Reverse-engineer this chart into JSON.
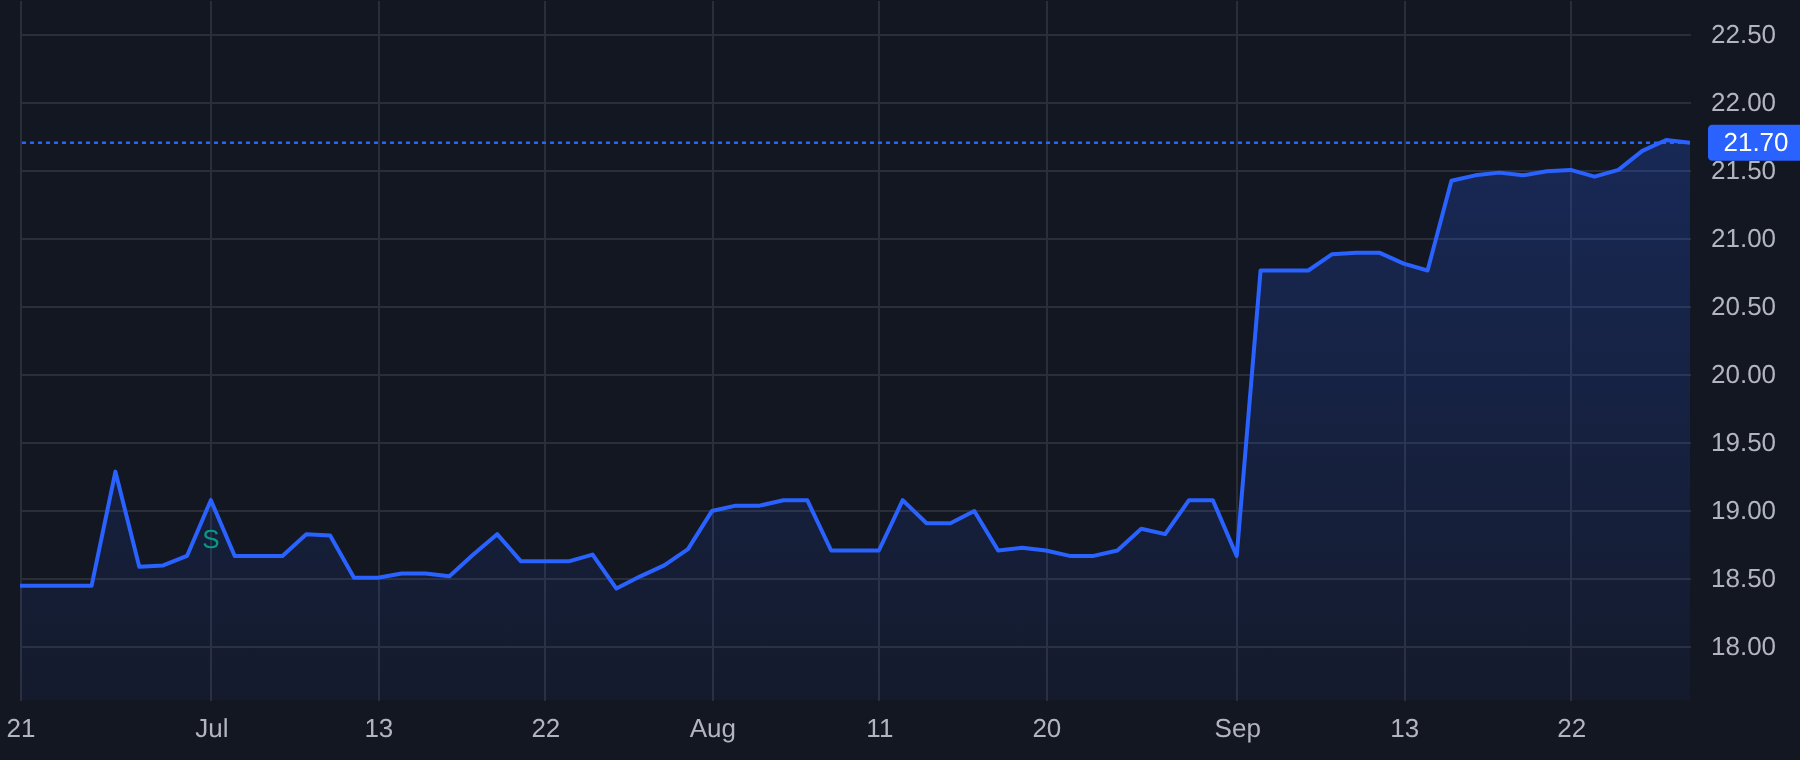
{
  "chart_data": {
    "type": "area",
    "categories": [
      "21",
      null,
      null,
      null,
      null,
      null,
      null,
      null,
      "Jul",
      null,
      null,
      null,
      null,
      null,
      null,
      "13",
      null,
      null,
      null,
      null,
      null,
      null,
      "22",
      null,
      null,
      null,
      null,
      null,
      null,
      "Aug",
      null,
      null,
      null,
      null,
      null,
      null,
      "11",
      null,
      null,
      null,
      null,
      null,
      null,
      "20",
      null,
      null,
      null,
      null,
      null,
      null,
      null,
      "Sep",
      null,
      null,
      null,
      null,
      null,
      null,
      "13",
      null,
      null,
      null,
      null,
      null,
      null,
      "22",
      null,
      null,
      null,
      null,
      null
    ],
    "series": [
      {
        "color": "#2962ff",
        "values": [
          18.44,
          18.44,
          18.44,
          18.44,
          19.28,
          18.58,
          18.59,
          18.66,
          19.07,
          18.66,
          18.66,
          18.66,
          18.82,
          18.81,
          18.5,
          18.5,
          18.53,
          18.53,
          18.51,
          18.67,
          18.82,
          18.62,
          18.62,
          18.62,
          18.67,
          18.42,
          18.51,
          18.59,
          18.71,
          18.99,
          19.03,
          19.03,
          19.07,
          19.07,
          18.7,
          18.7,
          18.7,
          19.07,
          18.9,
          18.9,
          18.99,
          18.7,
          18.72,
          18.7,
          18.66,
          18.66,
          18.7,
          18.86,
          18.82,
          19.07,
          19.07,
          18.66,
          20.76,
          20.76,
          20.76,
          20.88,
          20.89,
          20.89,
          20.81,
          20.76,
          21.42,
          21.46,
          21.48,
          21.46,
          21.49,
          21.5,
          21.45,
          21.5,
          21.64,
          21.72,
          21.7
        ]
      }
    ],
    "ylim": [
      17.6,
      22.75
    ],
    "yticks": [
      {
        "value": 18,
        "label": "18.00"
      },
      {
        "value": 18.5,
        "label": "18.50"
      },
      {
        "value": 19,
        "label": "19.00"
      },
      {
        "value": 19.5,
        "label": "19.50"
      },
      {
        "value": 20,
        "label": "20.00"
      },
      {
        "value": 20.5,
        "label": "20.50"
      },
      {
        "value": 21,
        "label": "21.00"
      },
      {
        "value": 21.5,
        "label": "21.50"
      },
      {
        "value": 22,
        "label": "22.00"
      },
      {
        "value": 22.5,
        "label": "22.50"
      }
    ],
    "grid": true,
    "ref_lines": [
      {
        "axis": "y",
        "value": 21.7,
        "label": "21.70",
        "color": "#2962ff",
        "line_style": "dotted"
      }
    ],
    "annotations": [
      {
        "text": "S",
        "x": "Jul",
        "y": 19.07
      }
    ]
  }
}
